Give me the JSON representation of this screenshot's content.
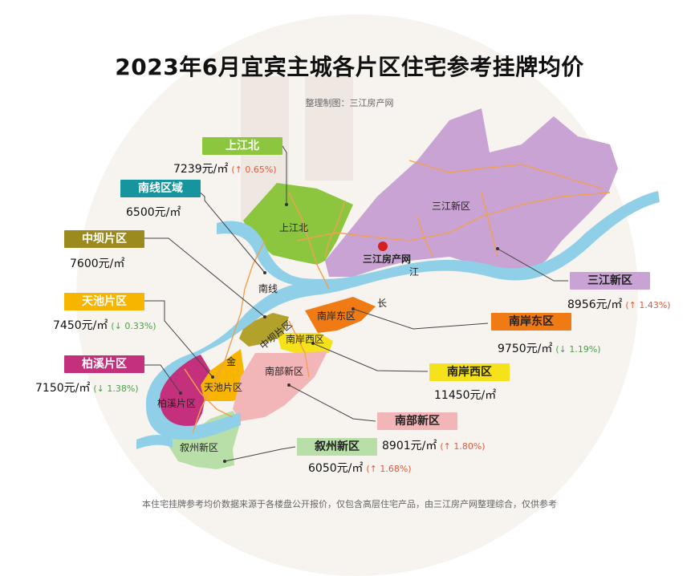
{
  "title": "2023年6月宜宾主城各片区住宅参考挂牌均价",
  "credit": "整理制图：三江房产网",
  "footer": "本住宅挂牌参考均价数据来源于各楼盘公开报价，仅包含高层住宅产品，由三江房产网整理综合，仅供参考",
  "map_text": {
    "river_ji": "江",
    "river_chang": "长",
    "river_jin": "金",
    "watermark_logo": "三江房产网"
  },
  "districts": [
    {
      "key": "shangjiangbei",
      "tag": "上江北",
      "price": "7239元/㎡",
      "change": "(↑ 0.65%)",
      "trend": "up",
      "color": "#8cc63e",
      "map_label": "上江北"
    },
    {
      "key": "nanxian",
      "tag": "南线区域",
      "price": "6500元/㎡",
      "change": "",
      "trend": "",
      "color": "#17959e",
      "map_label": "南线"
    },
    {
      "key": "zhongba",
      "tag": "中坝片区",
      "price": "7600元/㎡",
      "change": "",
      "trend": "",
      "color": "#9b8a1d",
      "map_label": "中坝片区"
    },
    {
      "key": "tianchi",
      "tag": "天池片区",
      "price": "7450元/㎡",
      "change": "(↓ 0.33%)",
      "trend": "down",
      "color": "#f7b500",
      "map_label": "天池片区"
    },
    {
      "key": "baixi",
      "tag": "柏溪片区",
      "price": "7150元/㎡",
      "change": "(↓ 1.38%)",
      "trend": "down",
      "color": "#c4307c",
      "map_label": "柏溪片区"
    },
    {
      "key": "sanjiang",
      "tag": "三江新区",
      "price": "8956元/㎡",
      "change": "(↑ 1.43%)",
      "trend": "up",
      "color": "#c9a3d4",
      "map_label": "三江新区"
    },
    {
      "key": "nananeast",
      "tag": "南岸东区",
      "price": "9750元/㎡",
      "change": "(↓ 1.19%)",
      "trend": "down",
      "color": "#f07a14",
      "map_label": "南岸东区"
    },
    {
      "key": "nananwest",
      "tag": "南岸西区",
      "price": "11450元/㎡",
      "change": "",
      "trend": "",
      "color": "#f5e21b",
      "map_label": "南岸西区"
    },
    {
      "key": "nanbu",
      "tag": "南部新区",
      "price": "8901元/㎡",
      "change": "(↑ 1.80%)",
      "trend": "up",
      "color": "#f2b6b8",
      "map_label": "南部新区"
    },
    {
      "key": "xuzhou",
      "tag": "叙州新区",
      "price": "6050元/㎡",
      "change": "(↑ 1.68%)",
      "trend": "up",
      "color": "#b9dfa8",
      "map_label": "叙州新区"
    }
  ]
}
